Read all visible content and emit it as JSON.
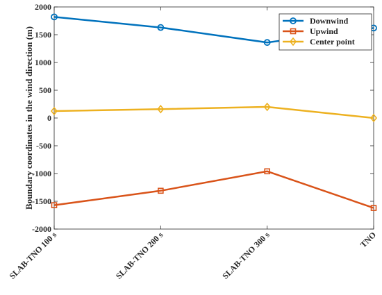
{
  "chart_data": {
    "type": "line",
    "categories": [
      "SLAB-TNO 100 s",
      "SLAB-TNO 200 s",
      "SLAB-TNO 300 s",
      "TNO"
    ],
    "series": [
      {
        "name": "Downwind",
        "values": [
          1820,
          1630,
          1360,
          1620
        ],
        "color": "#0072BD",
        "marker": "circle"
      },
      {
        "name": "Upwind",
        "values": [
          -1570,
          -1310,
          -960,
          -1620
        ],
        "color": "#D95319",
        "marker": "square"
      },
      {
        "name": "Center point",
        "values": [
          125,
          160,
          200,
          0
        ],
        "color": "#EDB120",
        "marker": "diamond"
      }
    ],
    "title": "",
    "xlabel": "",
    "ylabel": "Boundary coordinates in the wind direction (m)",
    "ylim": [
      -2000,
      2000
    ],
    "yticks": [
      -2000,
      -1500,
      -1000,
      -500,
      0,
      500,
      1000,
      1500,
      2000
    ],
    "grid": false,
    "legend_position": "top-right"
  }
}
